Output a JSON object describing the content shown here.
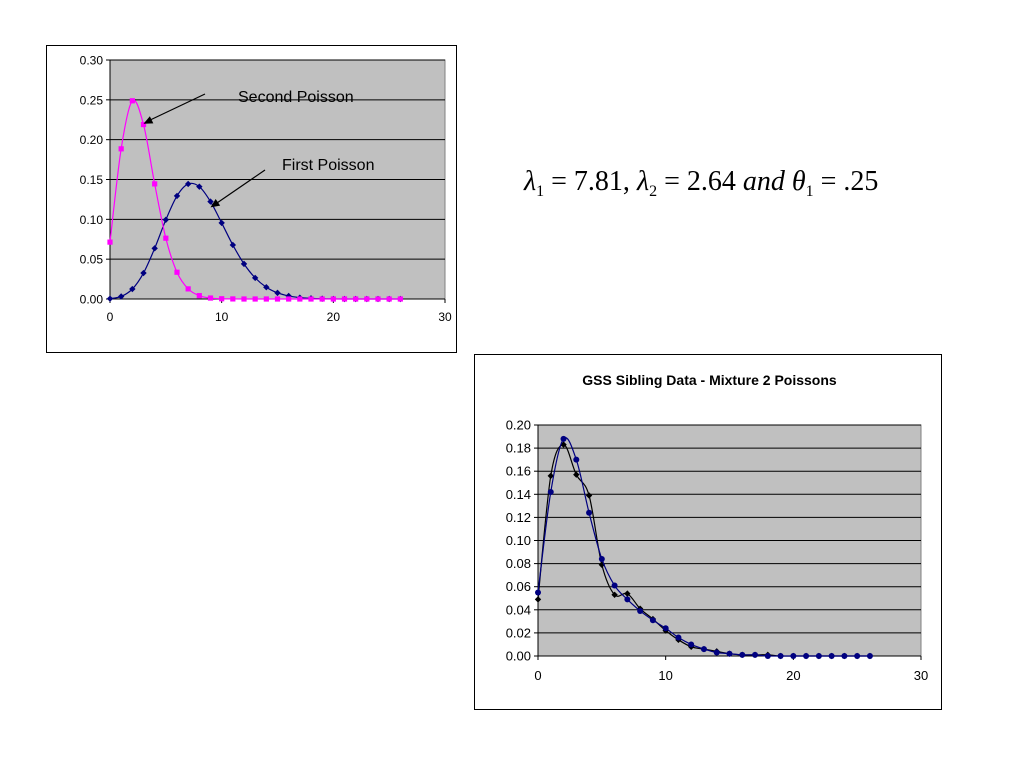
{
  "chart_data": [
    {
      "type": "line",
      "title": "",
      "xlabel": "",
      "ylabel": "",
      "xlim": [
        0,
        30
      ],
      "ylim": [
        0,
        0.3
      ],
      "x_ticks": [
        "0",
        "10",
        "20",
        "30"
      ],
      "y_ticks": [
        "0.00",
        "0.05",
        "0.10",
        "0.15",
        "0.20",
        "0.25",
        "0.30"
      ],
      "grid": true,
      "legend": "none",
      "plot_background": "#c0c0c0",
      "annotations": [
        {
          "text": "Second Poisson",
          "points_to": [
            3,
            0.22
          ]
        },
        {
          "text": "First Poisson",
          "points_to": [
            9,
            0.115
          ]
        }
      ],
      "series": [
        {
          "marker": "diamond",
          "color": "#000080",
          "x": [
            0,
            1,
            2,
            3,
            4,
            5,
            6,
            7,
            8,
            9,
            10,
            11,
            12,
            13,
            14,
            15,
            16,
            17,
            18,
            19,
            20,
            21,
            22,
            23,
            24,
            25,
            26
          ],
          "y": [
            0.0004,
            0.0032,
            0.0125,
            0.0326,
            0.0636,
            0.0994,
            0.1294,
            0.1444,
            0.141,
            0.1223,
            0.0955,
            0.0678,
            0.0441,
            0.0265,
            0.0148,
            0.0077,
            0.0038,
            0.0017,
            0.0008,
            0.0003,
            0.0001,
            0,
            0,
            0,
            0,
            0,
            0
          ]
        },
        {
          "marker": "square",
          "color": "#ff00ff",
          "x": [
            0,
            1,
            2,
            3,
            4,
            5,
            6,
            7,
            8,
            9,
            10,
            11,
            12,
            13,
            14,
            15,
            16,
            17,
            18,
            19,
            20,
            21,
            22,
            23,
            24,
            25,
            26
          ],
          "y": [
            0.0714,
            0.1885,
            0.2488,
            0.219,
            0.1445,
            0.0763,
            0.0336,
            0.0127,
            0.0042,
            0.0012,
            0.0003,
            0.0001,
            0,
            0,
            0,
            0,
            0,
            0,
            0,
            0,
            0,
            0,
            0,
            0,
            0,
            0,
            0
          ]
        }
      ]
    },
    {
      "type": "line",
      "title": "GSS Sibling Data - Mixture 2 Poissons",
      "xlabel": "",
      "ylabel": "",
      "xlim": [
        0,
        30
      ],
      "ylim": [
        0,
        0.2
      ],
      "x_ticks": [
        "0",
        "10",
        "20",
        "30"
      ],
      "y_ticks": [
        "0.00",
        "0.02",
        "0.04",
        "0.06",
        "0.08",
        "0.10",
        "0.12",
        "0.14",
        "0.16",
        "0.18",
        "0.20"
      ],
      "grid": true,
      "legend": "none",
      "plot_background": "#c0c0c0",
      "series": [
        {
          "marker": "diamond",
          "color": "#000000",
          "x": [
            0,
            1,
            2,
            3,
            4,
            5,
            6,
            7,
            8,
            9,
            10,
            11,
            12,
            13,
            14,
            15,
            16,
            17,
            18,
            19,
            20,
            21,
            22,
            23,
            24,
            25,
            26
          ],
          "y": [
            0.049,
            0.156,
            0.183,
            0.157,
            0.139,
            0.079,
            0.053,
            0.054,
            0.041,
            0.032,
            0.022,
            0.014,
            0.008,
            0.006,
            0.004,
            0.002,
            0.001,
            0.001,
            0.001,
            0,
            0,
            0,
            0,
            0,
            0,
            0,
            0
          ]
        },
        {
          "marker": "circle",
          "color": "#000080",
          "x": [
            0,
            1,
            2,
            3,
            4,
            5,
            6,
            7,
            8,
            9,
            10,
            11,
            12,
            13,
            14,
            15,
            16,
            17,
            18,
            19,
            20,
            21,
            22,
            23,
            24,
            25,
            26
          ],
          "y": [
            0.055,
            0.142,
            0.188,
            0.17,
            0.124,
            0.084,
            0.061,
            0.049,
            0.039,
            0.031,
            0.024,
            0.016,
            0.01,
            0.006,
            0.003,
            0.002,
            0.001,
            0.001,
            0,
            0,
            0,
            0,
            0,
            0,
            0,
            0,
            0
          ]
        }
      ]
    }
  ],
  "formula": {
    "lambda": "λ",
    "theta": "θ",
    "sub1": "1",
    "sub2": "2",
    "eq1": " = 7.81, ",
    "eq2": " = 2.64 ",
    "and_word": "and",
    "eq3": " = .25"
  }
}
